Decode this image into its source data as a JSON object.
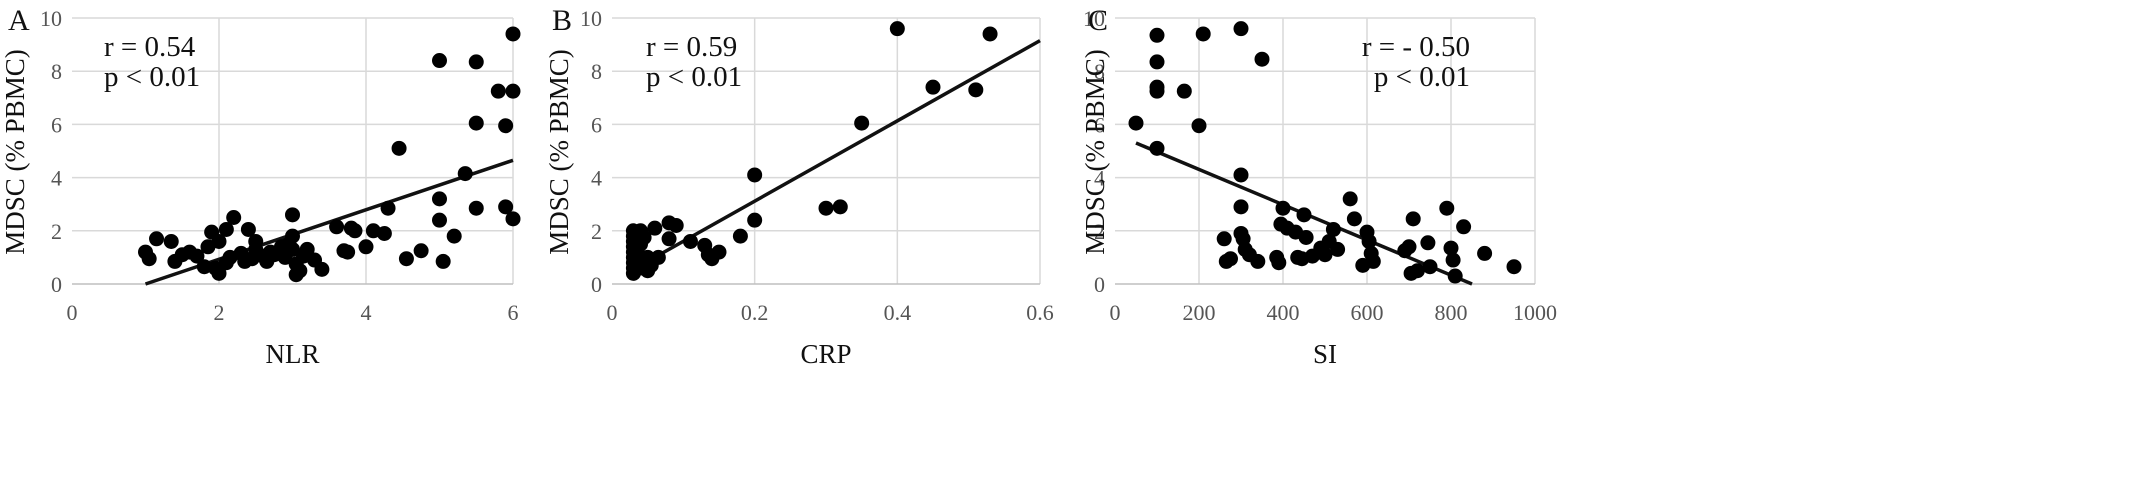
{
  "chart_data": [
    {
      "type": "scatter",
      "panel": "A",
      "xlabel": "NLR",
      "ylabel": "MDSC  (% PBMC)",
      "xlim": [
        0,
        6
      ],
      "ylim": [
        0,
        10
      ],
      "xticks": [
        0,
        2,
        4,
        6
      ],
      "yticks": [
        0,
        2,
        4,
        6,
        8,
        10
      ],
      "grid": true,
      "annotation": [
        "r =  0.54",
        "p < 0.01"
      ],
      "annotation_placement": "top-left",
      "trendline": [
        [
          1.0,
          0.0
        ],
        [
          6.0,
          4.65
        ]
      ],
      "points": [
        [
          1.0,
          1.2
        ],
        [
          1.05,
          0.95
        ],
        [
          1.15,
          1.7
        ],
        [
          1.35,
          1.6
        ],
        [
          1.4,
          0.85
        ],
        [
          1.5,
          1.1
        ],
        [
          1.6,
          1.2
        ],
        [
          1.7,
          1.05
        ],
        [
          1.8,
          0.65
        ],
        [
          1.85,
          1.4
        ],
        [
          1.9,
          1.95
        ],
        [
          1.95,
          0.6
        ],
        [
          2.0,
          0.4
        ],
        [
          2.0,
          1.6
        ],
        [
          2.1,
          0.8
        ],
        [
          2.1,
          2.05
        ],
        [
          2.15,
          1.0
        ],
        [
          2.2,
          2.5
        ],
        [
          2.3,
          1.15
        ],
        [
          2.35,
          0.85
        ],
        [
          2.4,
          2.05
        ],
        [
          2.45,
          0.95
        ],
        [
          2.5,
          1.3
        ],
        [
          2.5,
          1.6
        ],
        [
          2.6,
          1.05
        ],
        [
          2.65,
          0.85
        ],
        [
          2.7,
          1.2
        ],
        [
          2.75,
          1.1
        ],
        [
          2.85,
          1.4
        ],
        [
          2.9,
          1.0
        ],
        [
          2.95,
          1.5
        ],
        [
          3.0,
          2.6
        ],
        [
          3.0,
          1.8
        ],
        [
          3.0,
          1.3
        ],
        [
          3.05,
          0.75
        ],
        [
          3.05,
          0.35
        ],
        [
          3.1,
          0.5
        ],
        [
          3.15,
          1.05
        ],
        [
          3.2,
          1.3
        ],
        [
          3.3,
          0.9
        ],
        [
          3.4,
          0.55
        ],
        [
          3.6,
          2.15
        ],
        [
          3.7,
          1.25
        ],
        [
          3.75,
          1.2
        ],
        [
          3.8,
          2.1
        ],
        [
          3.85,
          2.0
        ],
        [
          4.0,
          1.4
        ],
        [
          4.1,
          2.0
        ],
        [
          4.25,
          1.9
        ],
        [
          4.3,
          2.85
        ],
        [
          4.45,
          5.1
        ],
        [
          4.55,
          0.95
        ],
        [
          4.75,
          1.25
        ],
        [
          5.0,
          8.4
        ],
        [
          5.0,
          3.2
        ],
        [
          5.0,
          2.4
        ],
        [
          5.05,
          0.85
        ],
        [
          5.2,
          1.8
        ],
        [
          5.35,
          4.15
        ],
        [
          5.5,
          8.35
        ],
        [
          5.5,
          6.05
        ],
        [
          5.5,
          2.85
        ],
        [
          5.8,
          7.25
        ],
        [
          5.9,
          5.95
        ],
        [
          5.9,
          2.9
        ],
        [
          6.0,
          9.4
        ],
        [
          6.0,
          7.25
        ],
        [
          6.0,
          2.45
        ]
      ]
    },
    {
      "type": "scatter",
      "panel": "B",
      "xlabel": "CRP",
      "ylabel": "MDSC  (% PBMC)",
      "xlim": [
        0,
        0.6
      ],
      "ylim": [
        0,
        10
      ],
      "xticks": [
        0,
        0.2,
        0.4,
        0.6
      ],
      "yticks": [
        0,
        2,
        4,
        6,
        8,
        10
      ],
      "grid": true,
      "annotation": [
        "r =  0.59",
        "p < 0.01"
      ],
      "annotation_placement": "top-left",
      "trendline": [
        [
          0.03,
          0.55
        ],
        [
          0.6,
          9.15
        ]
      ],
      "points": [
        [
          0.03,
          2.0
        ],
        [
          0.03,
          1.8
        ],
        [
          0.03,
          1.6
        ],
        [
          0.03,
          1.4
        ],
        [
          0.03,
          1.2
        ],
        [
          0.03,
          1.0
        ],
        [
          0.03,
          0.8
        ],
        [
          0.03,
          0.6
        ],
        [
          0.03,
          0.4
        ],
        [
          0.035,
          1.9
        ],
        [
          0.035,
          1.3
        ],
        [
          0.035,
          0.9
        ],
        [
          0.04,
          2.0
        ],
        [
          0.04,
          1.5
        ],
        [
          0.04,
          1.0
        ],
        [
          0.04,
          0.6
        ],
        [
          0.045,
          1.75
        ],
        [
          0.05,
          1.0
        ],
        [
          0.05,
          0.5
        ],
        [
          0.055,
          0.7
        ],
        [
          0.06,
          2.1
        ],
        [
          0.065,
          1.0
        ],
        [
          0.08,
          1.7
        ],
        [
          0.08,
          2.3
        ],
        [
          0.09,
          2.2
        ],
        [
          0.11,
          1.6
        ],
        [
          0.13,
          1.45
        ],
        [
          0.135,
          1.1
        ],
        [
          0.14,
          0.95
        ],
        [
          0.15,
          1.2
        ],
        [
          0.18,
          1.8
        ],
        [
          0.2,
          4.1
        ],
        [
          0.2,
          2.4
        ],
        [
          0.3,
          2.85
        ],
        [
          0.32,
          2.9
        ],
        [
          0.35,
          6.05
        ],
        [
          0.4,
          9.6
        ],
        [
          0.45,
          7.4
        ],
        [
          0.51,
          7.3
        ],
        [
          0.53,
          9.4
        ]
      ]
    },
    {
      "type": "scatter",
      "panel": "C",
      "xlabel": "SI",
      "ylabel": "MDSC  (% PBMC)",
      "xlim": [
        0,
        1000
      ],
      "ylim": [
        0,
        10
      ],
      "xticks": [
        0,
        200,
        400,
        600,
        800,
        1000
      ],
      "yticks": [
        0,
        2,
        4,
        6,
        8,
        10
      ],
      "grid": true,
      "annotation": [
        "r = - 0.50",
        "p < 0.01"
      ],
      "annotation_placement": "top-right",
      "trendline": [
        [
          50,
          5.3
        ],
        [
          850,
          0.0
        ]
      ],
      "points": [
        [
          50,
          6.05
        ],
        [
          100,
          9.35
        ],
        [
          100,
          8.35
        ],
        [
          100,
          7.4
        ],
        [
          100,
          7.25
        ],
        [
          100,
          5.1
        ],
        [
          165,
          7.25
        ],
        [
          200,
          5.95
        ],
        [
          210,
          9.4
        ],
        [
          300,
          9.6
        ],
        [
          350,
          8.45
        ],
        [
          300,
          4.1
        ],
        [
          300,
          2.9
        ],
        [
          300,
          1.9
        ],
        [
          305,
          1.7
        ],
        [
          310,
          1.3
        ],
        [
          320,
          1.1
        ],
        [
          340,
          0.85
        ],
        [
          260,
          1.7
        ],
        [
          265,
          0.85
        ],
        [
          275,
          0.95
        ],
        [
          385,
          1.0
        ],
        [
          390,
          0.8
        ],
        [
          395,
          2.25
        ],
        [
          400,
          2.85
        ],
        [
          410,
          2.1
        ],
        [
          430,
          1.95
        ],
        [
          435,
          1.0
        ],
        [
          445,
          0.95
        ],
        [
          450,
          2.6
        ],
        [
          455,
          1.75
        ],
        [
          470,
          1.05
        ],
        [
          490,
          1.35
        ],
        [
          500,
          1.1
        ],
        [
          510,
          1.6
        ],
        [
          520,
          2.05
        ],
        [
          530,
          1.3
        ],
        [
          560,
          3.2
        ],
        [
          570,
          2.45
        ],
        [
          590,
          0.7
        ],
        [
          600,
          1.95
        ],
        [
          605,
          1.6
        ],
        [
          610,
          1.15
        ],
        [
          615,
          0.85
        ],
        [
          690,
          1.25
        ],
        [
          700,
          1.4
        ],
        [
          705,
          0.4
        ],
        [
          710,
          2.45
        ],
        [
          720,
          0.5
        ],
        [
          745,
          1.55
        ],
        [
          750,
          0.65
        ],
        [
          790,
          2.85
        ],
        [
          800,
          1.35
        ],
        [
          805,
          0.9
        ],
        [
          810,
          0.3
        ],
        [
          830,
          2.15
        ],
        [
          880,
          1.15
        ],
        [
          950,
          0.65
        ]
      ]
    }
  ]
}
